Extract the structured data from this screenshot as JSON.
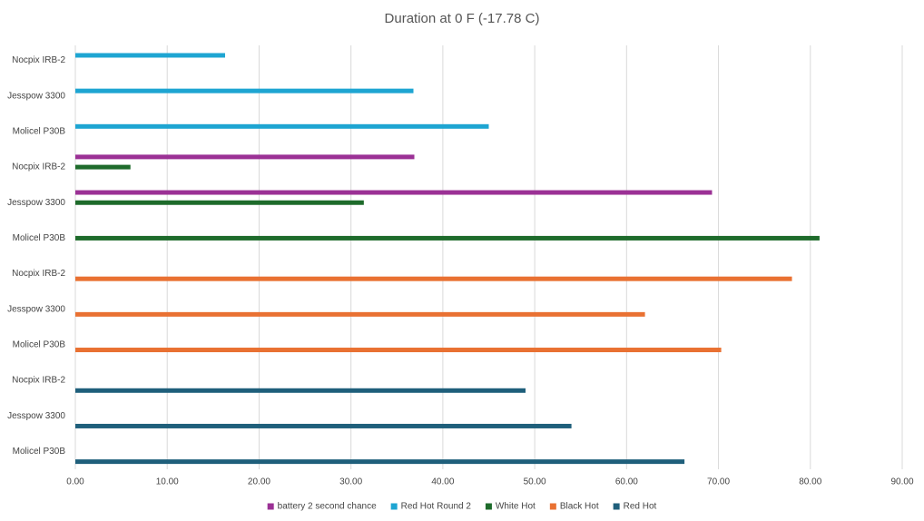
{
  "chart_data": {
    "type": "bar",
    "orientation": "horizontal",
    "title": "Duration at 0 F (-17.78 C)",
    "categories": [
      "Nocpix IRB-2",
      "Jesspow 3300",
      "Molicel P30B",
      "Nocpix IRB-2",
      "Jesspow 3300",
      "Molicel P30B",
      "Nocpix IRB-2",
      "Jesspow 3300",
      "Molicel P30B",
      "Nocpix IRB-2",
      "Jesspow 3300",
      "Molicel P30B"
    ],
    "series": [
      {
        "name": "battery 2 second chance",
        "color": "#9b3195",
        "values": [
          null,
          null,
          null,
          36.9,
          69.3,
          null,
          null,
          null,
          null,
          null,
          null,
          null
        ]
      },
      {
        "name": "Red Hot Round 2",
        "color": "#1ea5d2",
        "values": [
          16.3,
          36.8,
          45.0,
          null,
          null,
          null,
          null,
          null,
          null,
          null,
          null,
          null
        ]
      },
      {
        "name": "White Hot",
        "color": "#1e6b2b",
        "values": [
          null,
          null,
          null,
          6.0,
          31.4,
          81.0,
          null,
          null,
          null,
          null,
          null,
          null
        ]
      },
      {
        "name": "Black Hot",
        "color": "#e97132",
        "values": [
          null,
          null,
          null,
          null,
          null,
          null,
          78.0,
          62.0,
          70.3,
          null,
          null,
          null
        ]
      },
      {
        "name": "Red Hot",
        "color": "#1f5f7b",
        "values": [
          null,
          null,
          null,
          null,
          null,
          null,
          null,
          null,
          null,
          49.0,
          54.0,
          66.3
        ]
      }
    ],
    "xlim": [
      0,
      90
    ],
    "xticks": [
      {
        "value": 0,
        "label": "0.00"
      },
      {
        "value": 10,
        "label": "10.00"
      },
      {
        "value": 20,
        "label": "20.00"
      },
      {
        "value": 30,
        "label": "30.00"
      },
      {
        "value": 40,
        "label": "40.00"
      },
      {
        "value": 50,
        "label": "50.00"
      },
      {
        "value": 60,
        "label": "60.00"
      },
      {
        "value": 70,
        "label": "70.00"
      },
      {
        "value": 80,
        "label": "80.00"
      },
      {
        "value": 90,
        "label": "90.00"
      }
    ],
    "grid": true,
    "legend": "bottom"
  }
}
